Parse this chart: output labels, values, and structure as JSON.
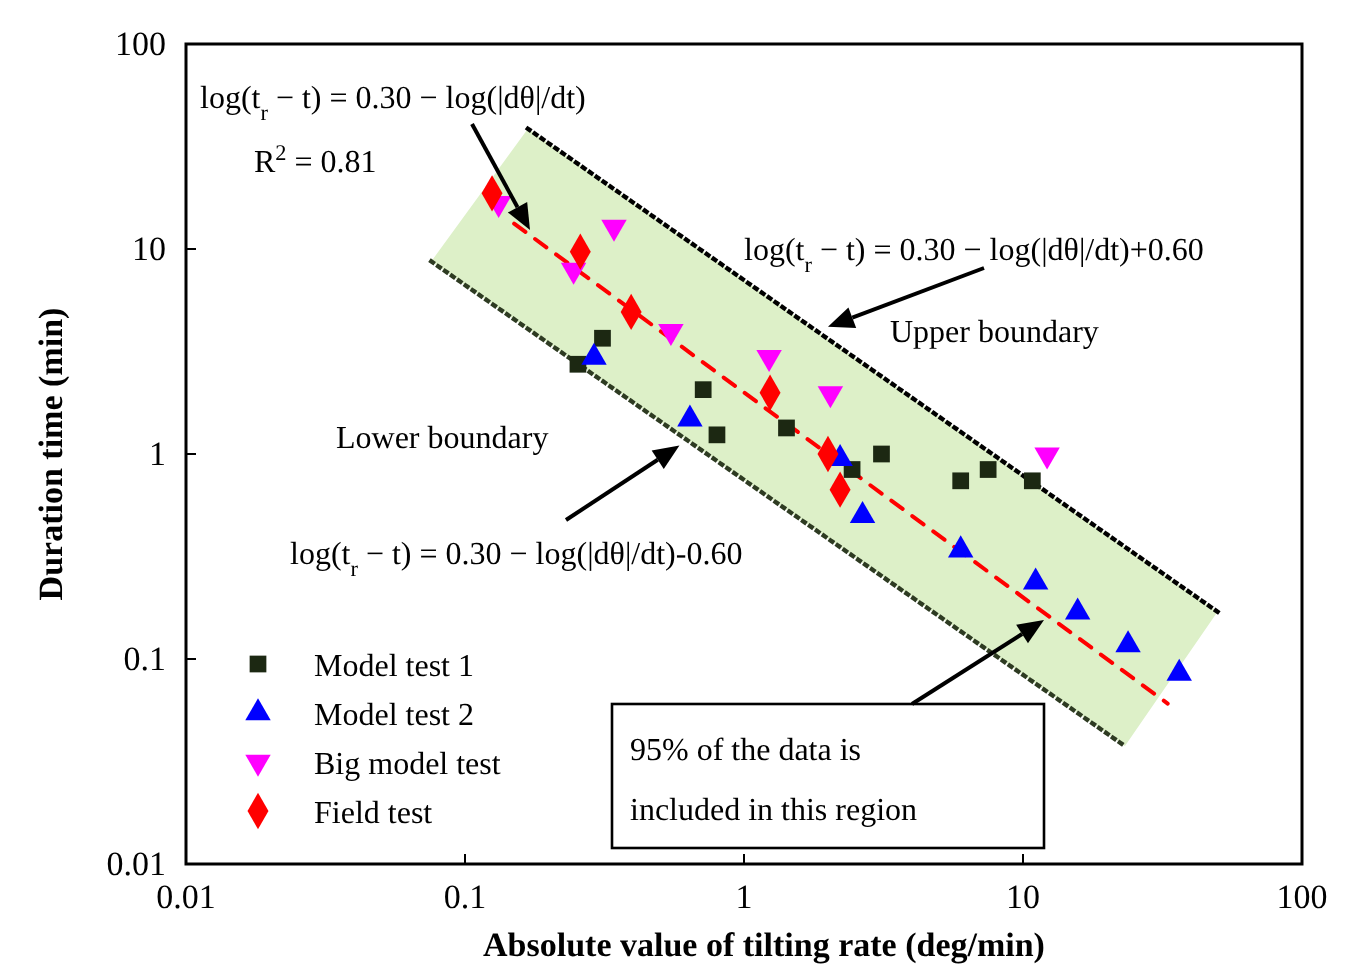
{
  "chart_data": {
    "type": "scatter",
    "xlabel": "Absolute value of tilting rate (deg/min)",
    "ylabel": "Duration time (min)",
    "log": "xy",
    "xlim": [
      0.01,
      100
    ],
    "ylim": [
      0.01,
      100
    ],
    "xticks": [
      0.01,
      0.1,
      1,
      10,
      100
    ],
    "yticks": [
      0.01,
      0.1,
      1,
      10,
      100
    ],
    "grid": false,
    "legend": "bottom left",
    "series": [
      {
        "type": "line",
        "color": "#000000",
        "line_style": "dotted",
        "marker": "none",
        "x": [
          0.168,
          49.8
        ],
        "values": [
          38.6,
          0.17
        ]
      },
      {
        "type": "line",
        "color": "#2e3b22",
        "line_style": "dotted",
        "marker": "none",
        "x": [
          0.0757,
          23.2
        ],
        "values": [
          8.7,
          0.0376
        ]
      },
      {
        "type": "line",
        "color": "#ddf0c8",
        "marker": "none",
        "x": [
          0.0757,
          0.168,
          23.2,
          49.8
        ],
        "values": [
          null,
          null,
          null,
          null
        ],
        "lower": [
          8.7,
          4.07,
          0.0376,
          0.17
        ],
        "upper": [
          8.7,
          38.6,
          0.352,
          0.17
        ]
      },
      {
        "type": "line",
        "color": "#ff0000",
        "line_style": "dashed",
        "marker": "none",
        "x": [
          0.15,
          33
        ],
        "values": [
          13.3,
          0.0606
        ]
      },
      {
        "name": "Model test 1",
        "color": "#1c2812",
        "marker": "square",
        "x": [
          0.254,
          0.311,
          0.714,
          0.8,
          1.42,
          2.44,
          3.11,
          5.98,
          7.5,
          10.8
        ],
        "values": [
          2.74,
          3.67,
          2.06,
          1.24,
          1.34,
          0.84,
          1.0,
          0.74,
          0.84,
          0.74
        ]
      },
      {
        "name": "Model test 2",
        "color": "#0000ff",
        "marker": "triangle",
        "x": [
          0.29,
          0.64,
          2.21,
          2.66,
          5.98,
          11.1,
          15.7,
          23.8,
          36.3
        ],
        "values": [
          2.96,
          1.48,
          0.95,
          0.5,
          0.34,
          0.237,
          0.169,
          0.117,
          0.085
        ]
      },
      {
        "name": "Big model test",
        "color": "#ff00ff",
        "marker": "triangle-down",
        "x": [
          0.132,
          0.342,
          0.245,
          0.547,
          1.23,
          2.04,
          12.2
        ],
        "values": [
          16.7,
          12.8,
          7.9,
          3.97,
          2.96,
          1.97,
          0.99
        ]
      },
      {
        "name": "Field test",
        "color": "#ff0000",
        "marker": "diamond",
        "x": [
          0.125,
          0.259,
          0.394,
          1.24,
          2.0,
          2.21
        ],
        "values": [
          18.7,
          9.7,
          4.93,
          1.99,
          1.0,
          0.67
        ]
      }
    ],
    "annotations": [
      "log(t$_{r}$ − t) = 0.30 − log(|dθ|/dt)",
      "R$^{2}$ = 0.81",
      {
        "text": "log(t$_{r}$ − t) = 0.30 − log(|dθ|/dt)+0.60",
        "x": 2.0,
        "y": 4.17
      },
      "Upper boundary",
      "Lower boundary",
      {
        "text": "log(t$_{r}$ − t) = 0.30 − log(|dθ|/dt)-0.60",
        "x": 0.587,
        "y": 1.1
      },
      "95% of the data is included in this region"
    ]
  }
}
